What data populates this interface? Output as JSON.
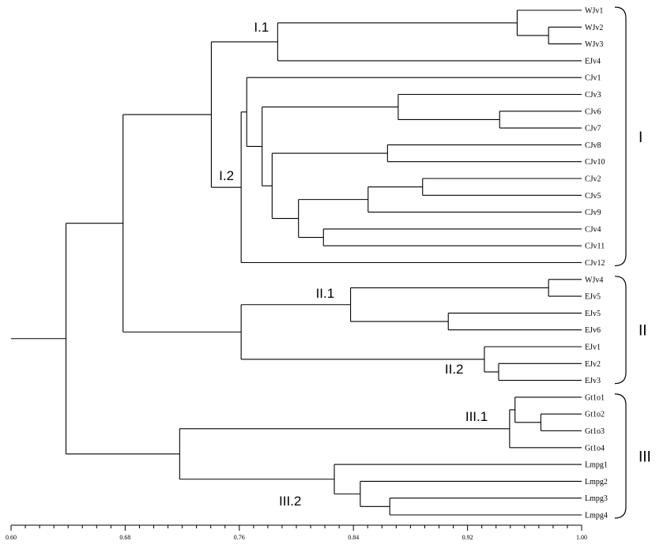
{
  "leaves": [
    "WJv1",
    "WJv2",
    "WJv3",
    "EJv4",
    "CJv1",
    "CJv3",
    "CJv6",
    "CJv7",
    "CJv8",
    "CJv10",
    "CJv2",
    "CJv5",
    "CJv9",
    "CJv4",
    "CJv11",
    "CJv12",
    "WJv4",
    "EJv5",
    "EJv5",
    "EJv6",
    "EJv1",
    "EJv2",
    "EJv3",
    "Gt1o1",
    "Gt1o2",
    "Gt1o3",
    "Gt1o4",
    "Lmpg1",
    "Lmpg2",
    "Lmpg3",
    "Lmpg4"
  ],
  "tree": {
    "h": 0.6385,
    "c": [
      {
        "h": 0.6785,
        "c": [
          {
            "h": 0.7404,
            "c": [
              {
                "h": 0.7869,
                "c": [
                  {
                    "h": 0.9548,
                    "c": [
                      {
                        "leaf": 0
                      },
                      {
                        "h": 0.9768,
                        "c": [
                          {
                            "leaf": 1
                          },
                          {
                            "leaf": 2
                          }
                        ]
                      }
                    ]
                  },
                  {
                    "leaf": 3
                  }
                ]
              },
              {
                "h": 0.7613,
                "c": [
                  {
                    "h": 0.7652,
                    "c": [
                      {
                        "leaf": 4
                      },
                      {
                        "h": 0.776,
                        "c": [
                          {
                            "h": 0.8714,
                            "c": [
                              {
                                "leaf": 5
                              },
                              {
                                "h": 0.9425,
                                "c": [
                                  {
                                    "leaf": 6
                                  },
                                  {
                                    "leaf": 7
                                  }
                                ]
                              }
                            ]
                          },
                          {
                            "h": 0.783,
                            "c": [
                              {
                                "h": 0.8639,
                                "c": [
                                  {
                                    "leaf": 8
                                  },
                                  {
                                    "leaf": 9
                                  }
                                ]
                              },
                              {
                                "h": 0.8015,
                                "c": [
                                  {
                                    "h": 0.8503,
                                    "c": [
                                      {
                                        "h": 0.8885,
                                        "c": [
                                          {
                                            "leaf": 10
                                          },
                                          {
                                            "leaf": 11
                                          }
                                        ]
                                      },
                                      {
                                        "leaf": 12
                                      }
                                    ]
                                  },
                                  {
                                    "h": 0.819,
                                    "c": [
                                      {
                                        "leaf": 13
                                      },
                                      {
                                        "leaf": 14
                                      }
                                    ]
                                  }
                                ]
                              }
                            ]
                          }
                        ]
                      }
                    ]
                  },
                  {
                    "leaf": 15
                  }
                ]
              }
            ]
          },
          {
            "h": 0.7613,
            "c": [
              {
                "h": 0.838,
                "c": [
                  {
                    "h": 0.9768,
                    "c": [
                      {
                        "leaf": 16
                      },
                      {
                        "leaf": 17
                      }
                    ]
                  },
                  {
                    "h": 0.9065,
                    "c": [
                      {
                        "leaf": 18
                      },
                      {
                        "leaf": 19
                      }
                    ]
                  }
                ]
              },
              {
                "h": 0.9318,
                "c": [
                  {
                    "leaf": 20
                  },
                  {
                    "h": 0.9418,
                    "c": [
                      {
                        "leaf": 21
                      },
                      {
                        "leaf": 22
                      }
                    ]
                  }
                ]
              }
            ]
          }
        ]
      },
      {
        "h": 0.7182,
        "c": [
          {
            "h": 0.9495,
            "c": [
              {
                "h": 0.9533,
                "c": [
                  {
                    "leaf": 23
                  },
                  {
                    "h": 0.9714,
                    "c": [
                      {
                        "leaf": 24
                      },
                      {
                        "leaf": 25
                      }
                    ]
                  }
                ]
              },
              {
                "leaf": 26
              }
            ]
          },
          {
            "h": 0.8266,
            "c": [
              {
                "leaf": 27
              },
              {
                "h": 0.8448,
                "c": [
                  {
                    "leaf": 28
                  },
                  {
                    "h": 0.8655,
                    "c": [
                      {
                        "leaf": 29
                      },
                      {
                        "leaf": 30
                      }
                    ]
                  }
                ]
              }
            ]
          }
        ]
      }
    ]
  },
  "clade_labels": [
    {
      "text": "I.1",
      "first": 0,
      "last": 3
    },
    {
      "text": "I.2",
      "first": 4,
      "last": 15
    },
    {
      "text": "II.1",
      "first": 16,
      "last": 19
    },
    {
      "text": "II.2",
      "first": 20,
      "last": 22
    },
    {
      "text": "III.1",
      "first": 23,
      "last": 26
    },
    {
      "text": "III.2",
      "first": 27,
      "last": 30
    }
  ],
  "groups": [
    {
      "text": "I",
      "first": 0,
      "last": 15
    },
    {
      "text": "II",
      "first": 16,
      "last": 22
    },
    {
      "text": "III",
      "first": 23,
      "last": 30
    }
  ],
  "axis": {
    "min": 0.6,
    "max": 1.0,
    "minor_step": 0.01,
    "major_every": 8,
    "labels": [
      "0.60",
      "0.68",
      "0.76",
      "0.84",
      "0.92",
      "1.00"
    ]
  }
}
